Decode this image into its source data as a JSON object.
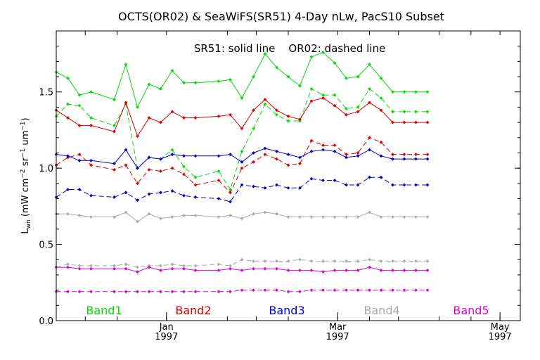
{
  "chart_data": {
    "type": "line",
    "title": "OCTS(OR02) & SeaWiFS(SR51) 4-Day nLw, PacS10 Subset",
    "annotation": "SR51: solid line    OR02: dashed line",
    "xlabel": "",
    "ylabel": "L_wn (mW cm^-2 sr^-1 um^-1)",
    "ylim": [
      0.0,
      1.9
    ],
    "yticks": [
      {
        "value": 0.0,
        "label": "0.0"
      },
      {
        "value": 0.5,
        "label": "0.5"
      },
      {
        "value": 1.0,
        "label": "1.0"
      },
      {
        "value": 1.5,
        "label": "1.5"
      }
    ],
    "xlim": [
      0,
      160
    ],
    "xticks": [
      {
        "x": 38,
        "month": "Jan",
        "year": "1997"
      },
      {
        "x": 97,
        "month": "Mar",
        "year": "1997"
      },
      {
        "x": 153,
        "month": "May",
        "year": "1997"
      }
    ],
    "x_minor_ticks": [
      10,
      21,
      38,
      59,
      69,
      80,
      97,
      108,
      118,
      132,
      143,
      153
    ],
    "solid_x": [
      0,
      4,
      8,
      12,
      20,
      24,
      28,
      32,
      36,
      40,
      44,
      48,
      56,
      60,
      64,
      68,
      72,
      76,
      80,
      84,
      88,
      92,
      96,
      100,
      104,
      108,
      112,
      116,
      120,
      124,
      128
    ],
    "dashed_x": [
      0,
      4,
      8,
      12,
      20,
      24,
      28,
      32,
      36,
      40,
      44,
      48,
      56,
      60,
      64,
      68,
      72,
      76,
      80,
      84,
      88,
      92,
      96,
      100,
      104,
      108,
      112,
      116,
      120,
      124,
      128
    ],
    "grid": false,
    "legend_position": "bottom",
    "series": [
      {
        "name": "Band1",
        "style": "solid",
        "color": "#00dd00",
        "values": [
          1.63,
          1.59,
          1.48,
          1.5,
          1.45,
          1.68,
          1.4,
          1.55,
          1.52,
          1.64,
          1.56,
          1.56,
          1.57,
          1.58,
          1.46,
          1.6,
          1.75,
          1.66,
          1.6,
          1.54,
          1.73,
          1.76,
          1.69,
          1.59,
          1.6,
          1.68,
          1.59,
          1.5,
          1.5,
          1.5,
          1.5
        ]
      },
      {
        "name": "Band1",
        "style": "dashed",
        "color": "#00dd00",
        "values": [
          1.34,
          1.42,
          1.41,
          1.33,
          1.28,
          1.42,
          1.0,
          1.07,
          1.06,
          1.12,
          1.01,
          0.94,
          0.98,
          0.86,
          1.11,
          1.26,
          1.42,
          1.35,
          1.31,
          1.31,
          1.52,
          1.48,
          1.48,
          1.39,
          1.4,
          1.52,
          1.46,
          1.37,
          1.37,
          1.37,
          1.37
        ]
      },
      {
        "name": "Band2",
        "style": "solid",
        "color": "#dd0000",
        "values": [
          1.38,
          1.33,
          1.28,
          1.28,
          1.24,
          1.43,
          1.21,
          1.33,
          1.3,
          1.37,
          1.33,
          1.33,
          1.34,
          1.35,
          1.26,
          1.38,
          1.45,
          1.38,
          1.34,
          1.32,
          1.44,
          1.46,
          1.41,
          1.35,
          1.37,
          1.43,
          1.38,
          1.3,
          1.3,
          1.3,
          1.3
        ]
      },
      {
        "name": "Band2",
        "style": "dashed",
        "color": "#dd0000",
        "values": [
          1.02,
          1.07,
          1.09,
          1.02,
          0.99,
          1.02,
          0.9,
          0.99,
          0.98,
          1.0,
          0.96,
          0.89,
          0.92,
          0.84,
          1.0,
          1.04,
          1.09,
          1.06,
          1.02,
          1.03,
          1.18,
          1.15,
          1.15,
          1.09,
          1.1,
          1.2,
          1.17,
          1.09,
          1.09,
          1.09,
          1.09
        ]
      },
      {
        "name": "Band3",
        "style": "solid",
        "color": "#0000cc",
        "values": [
          1.09,
          1.08,
          1.05,
          1.05,
          1.03,
          1.12,
          1.0,
          1.07,
          1.06,
          1.09,
          1.08,
          1.08,
          1.08,
          1.09,
          1.04,
          1.1,
          1.13,
          1.11,
          1.09,
          1.07,
          1.11,
          1.12,
          1.11,
          1.07,
          1.08,
          1.12,
          1.08,
          1.06,
          1.06,
          1.06,
          1.06
        ]
      },
      {
        "name": "Band3",
        "style": "dashed",
        "color": "#0000cc",
        "values": [
          0.81,
          0.86,
          0.86,
          0.82,
          0.81,
          0.84,
          0.79,
          0.83,
          0.84,
          0.85,
          0.82,
          0.81,
          0.8,
          0.78,
          0.89,
          0.88,
          0.87,
          0.89,
          0.87,
          0.87,
          0.93,
          0.92,
          0.92,
          0.89,
          0.89,
          0.94,
          0.94,
          0.89,
          0.89,
          0.89,
          0.89
        ]
      },
      {
        "name": "Band4",
        "style": "solid",
        "color": "#aaaaaa",
        "values": [
          0.7,
          0.7,
          0.69,
          0.68,
          0.68,
          0.71,
          0.65,
          0.7,
          0.67,
          0.68,
          0.69,
          0.69,
          0.68,
          0.69,
          0.67,
          0.7,
          0.71,
          0.7,
          0.68,
          0.68,
          0.68,
          0.68,
          0.68,
          0.68,
          0.68,
          0.71,
          0.68,
          0.68,
          0.68,
          0.68,
          0.68
        ]
      },
      {
        "name": "Band4",
        "style": "dashed",
        "color": "#aaaaaa",
        "values": [
          0.35,
          0.37,
          0.36,
          0.36,
          0.36,
          0.37,
          0.35,
          0.36,
          0.36,
          0.37,
          0.36,
          0.36,
          0.37,
          0.36,
          0.4,
          0.39,
          0.39,
          0.39,
          0.39,
          0.4,
          0.39,
          0.39,
          0.39,
          0.39,
          0.39,
          0.4,
          0.39,
          0.39,
          0.39,
          0.39,
          0.39
        ]
      },
      {
        "name": "Band5",
        "style": "solid",
        "color": "#dd00dd",
        "values": [
          0.35,
          0.35,
          0.34,
          0.34,
          0.34,
          0.34,
          0.32,
          0.35,
          0.33,
          0.34,
          0.34,
          0.33,
          0.33,
          0.34,
          0.33,
          0.34,
          0.34,
          0.34,
          0.33,
          0.33,
          0.33,
          0.32,
          0.33,
          0.33,
          0.33,
          0.35,
          0.33,
          0.33,
          0.33,
          0.33,
          0.33
        ]
      },
      {
        "name": "Band5",
        "style": "dashed",
        "color": "#dd00dd",
        "values": [
          0.19,
          0.19,
          0.19,
          0.19,
          0.19,
          0.19,
          0.19,
          0.19,
          0.19,
          0.19,
          0.19,
          0.19,
          0.19,
          0.19,
          0.2,
          0.2,
          0.2,
          0.2,
          0.19,
          0.19,
          0.2,
          0.2,
          0.2,
          0.2,
          0.2,
          0.2,
          0.2,
          0.2,
          0.2,
          0.2,
          0.2
        ]
      }
    ],
    "legend": [
      {
        "label": "Band1",
        "color": "#00dd00"
      },
      {
        "label": "Band2",
        "color": "#dd0000"
      },
      {
        "label": "Band3",
        "color": "#0000cc"
      },
      {
        "label": "Band4",
        "color": "#aaaaaa"
      },
      {
        "label": "Band5",
        "color": "#dd00dd"
      }
    ]
  }
}
